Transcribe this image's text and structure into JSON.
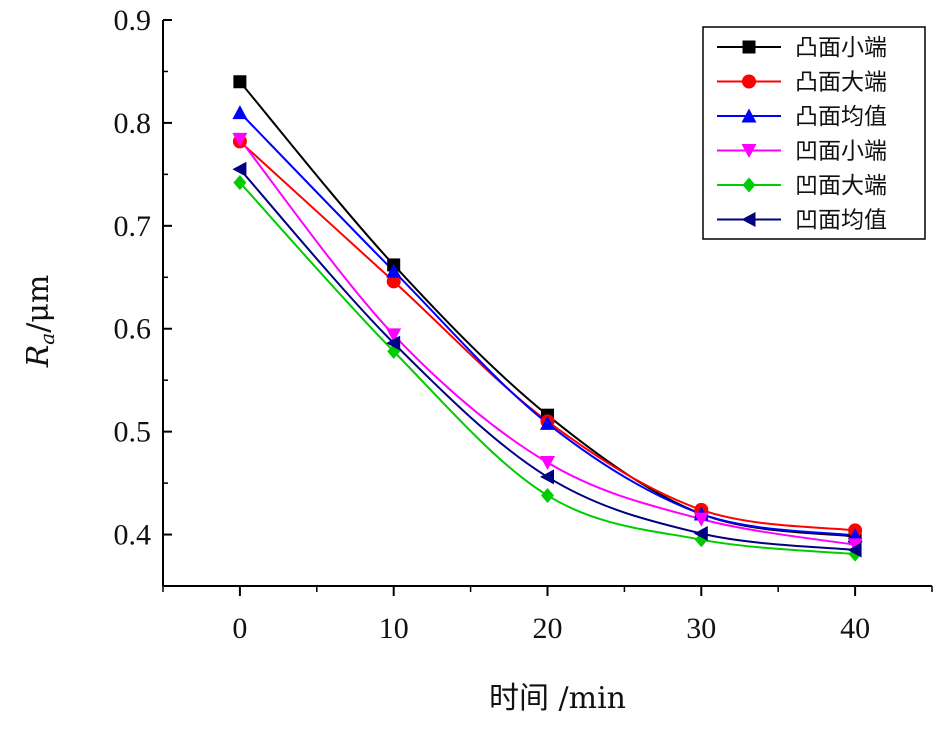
{
  "chart_data": {
    "type": "line",
    "xlabel": "时间 /min",
    "ylabel_main": "R",
    "ylabel_sub": "a",
    "ylabel_unit": "/μm",
    "xlim": [
      -5,
      45
    ],
    "ylim": [
      0.35,
      0.9
    ],
    "xticks": [
      0,
      10,
      20,
      30,
      40
    ],
    "xtick_labels": [
      "0",
      "10",
      "20",
      "30",
      "40"
    ],
    "yticks": [
      0.4,
      0.5,
      0.6,
      0.7,
      0.8,
      0.9
    ],
    "ytick_labels": [
      "0.4",
      "0.5",
      "0.6",
      "0.7",
      "0.8",
      "0.9"
    ],
    "legend_position": "top-right",
    "x": [
      0,
      10,
      20,
      30,
      40
    ],
    "series": [
      {
        "name": "凸面小端",
        "color": "#000000",
        "marker": "square",
        "values": [
          0.84,
          0.662,
          0.516,
          0.42,
          0.398
        ]
      },
      {
        "name": "凸面大端",
        "color": "#ff0000",
        "marker": "circle",
        "values": [
          0.782,
          0.646,
          0.51,
          0.424,
          0.404
        ]
      },
      {
        "name": "凸面均值",
        "color": "#0000ff",
        "marker": "triangle-up",
        "values": [
          0.81,
          0.656,
          0.508,
          0.42,
          0.399
        ]
      },
      {
        "name": "凹面小端",
        "color": "#ff00ff",
        "marker": "triangle-down",
        "values": [
          0.784,
          0.594,
          0.47,
          0.415,
          0.39
        ]
      },
      {
        "name": "凹面大端",
        "color": "#00cc00",
        "marker": "diamond",
        "values": [
          0.742,
          0.578,
          0.438,
          0.395,
          0.381
        ]
      },
      {
        "name": "凹面均值",
        "color": "#000080",
        "marker": "triangle-left",
        "values": [
          0.755,
          0.586,
          0.456,
          0.401,
          0.385
        ]
      }
    ]
  }
}
